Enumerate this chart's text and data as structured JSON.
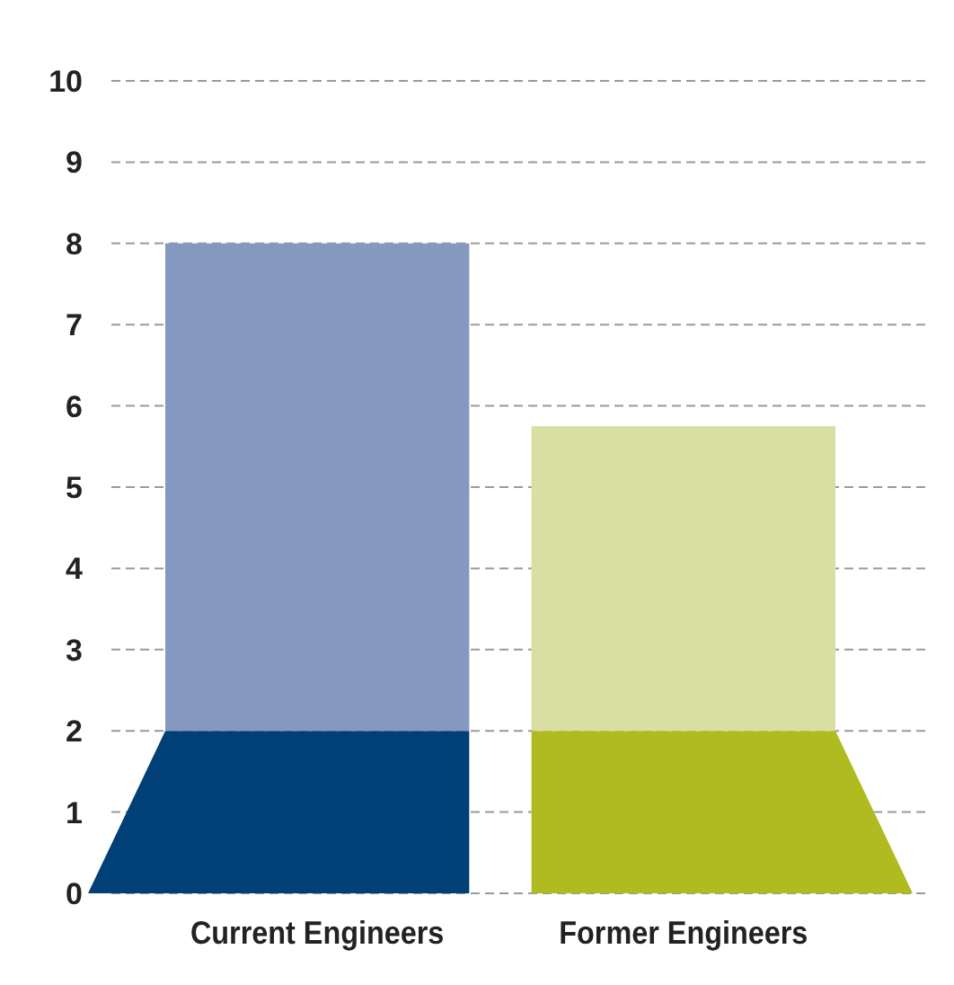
{
  "chart_data": {
    "type": "bar",
    "stacked": true,
    "categories": [
      "Current Engineers",
      "Former Engineers"
    ],
    "series": [
      {
        "colors": [
          "#004077",
          "#b0bb1f"
        ],
        "values": [
          2,
          2
        ]
      },
      {
        "colors": [
          "#8599c0",
          "#d9dea3"
        ],
        "values": [
          6,
          3.75
        ]
      }
    ],
    "ylim": [
      0,
      10
    ],
    "yticks": [
      0,
      1,
      2,
      3,
      4,
      5,
      6,
      7,
      8,
      9,
      10
    ],
    "grid": "y"
  }
}
